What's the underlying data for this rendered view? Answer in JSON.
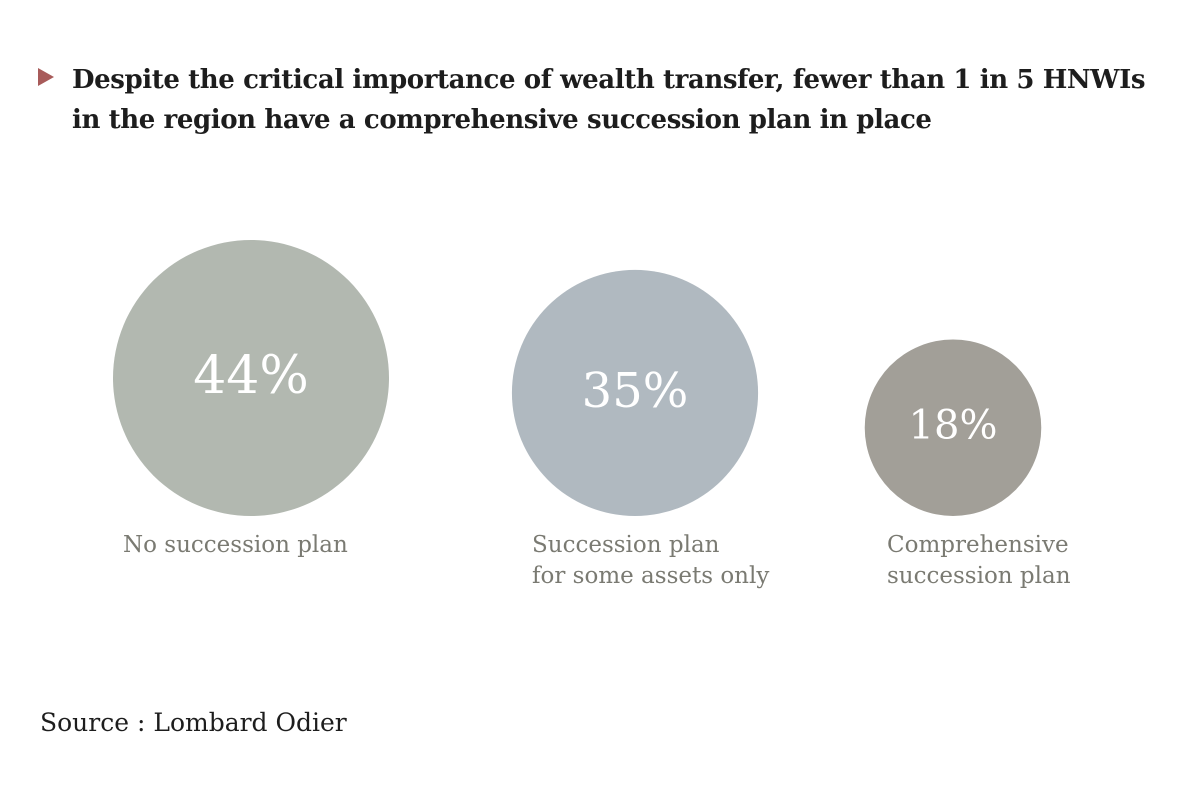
{
  "chart_data": {
    "type": "bubble",
    "title": "Despite the critical importance of wealth transfer, fewer than 1 in 5 HNWIs in the region have a comprehensive succession plan in place",
    "unit": "%",
    "categories": [
      [
        "No succession plan"
      ],
      [
        "Succession plan",
        "for some assets only"
      ],
      [
        "Comprehensive",
        "succession plan"
      ]
    ],
    "values": [
      44,
      35,
      18
    ],
    "value_labels": [
      "44%",
      "35%",
      "18%"
    ],
    "colors": [
      "#b2b8b0",
      "#b0b9c0",
      "#a29f98"
    ],
    "legend": "none",
    "grid": false
  },
  "source": "Source : Lombard Odier",
  "colors": {
    "marker": "#a85b5a",
    "text": "#1d1d1d",
    "category_text": "#7a7a72"
  }
}
